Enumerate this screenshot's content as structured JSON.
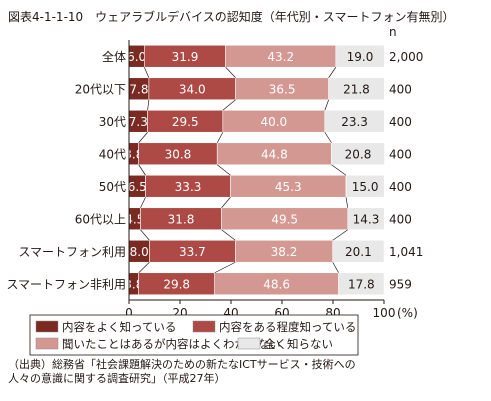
{
  "figure": {
    "title": "図表4-1-1-10　ウェアラブルデバイスの認知度（年代別・スマートフォン有無別）",
    "source_line1": "（出典）総務省「社会課題解決のための新たなICTサービス・技術への",
    "source_line2": "人々の意識に関する調査研究」（平成27年）"
  },
  "chart_data": {
    "type": "bar",
    "orientation": "horizontal",
    "stacked": true,
    "percent_stacked": true,
    "categories": [
      "全体",
      "20代以下",
      "30代",
      "40代",
      "50代",
      "60代以上",
      "スマートフォン利用",
      "スマートフォン非利用"
    ],
    "n_header": "n",
    "n_values": [
      "2,000",
      "400",
      "400",
      "400",
      "400",
      "400",
      "1,041",
      "959"
    ],
    "series": [
      {
        "name": "内容をよく知っている",
        "color": "#7b2a22",
        "label_color": "#ffffff",
        "values": [
          6.0,
          7.8,
          7.3,
          3.8,
          6.5,
          4.5,
          8.0,
          3.8
        ]
      },
      {
        "name": "内容をある程度知っている",
        "color": "#ad4a45",
        "label_color": "#ffffff",
        "values": [
          31.9,
          34.0,
          29.5,
          30.8,
          33.3,
          31.8,
          33.7,
          29.8
        ]
      },
      {
        "name": "聞いたことはあるが内容はよくわからない",
        "color": "#d49893",
        "label_color": "#ffffff",
        "values": [
          43.2,
          36.5,
          40.0,
          44.8,
          45.3,
          49.5,
          38.2,
          48.6
        ]
      },
      {
        "name": "全く知らない",
        "color": "#e8e8e8",
        "label_color": "#231815",
        "values": [
          19.0,
          21.8,
          23.3,
          20.8,
          15.0,
          14.3,
          20.1,
          17.8
        ]
      }
    ],
    "xlim": [
      0,
      100
    ],
    "x_ticks": [
      "0",
      "20",
      "40",
      "60",
      "80",
      "100"
    ],
    "x_unit": "(%)",
    "grid": false,
    "legend_position": "bottom"
  }
}
